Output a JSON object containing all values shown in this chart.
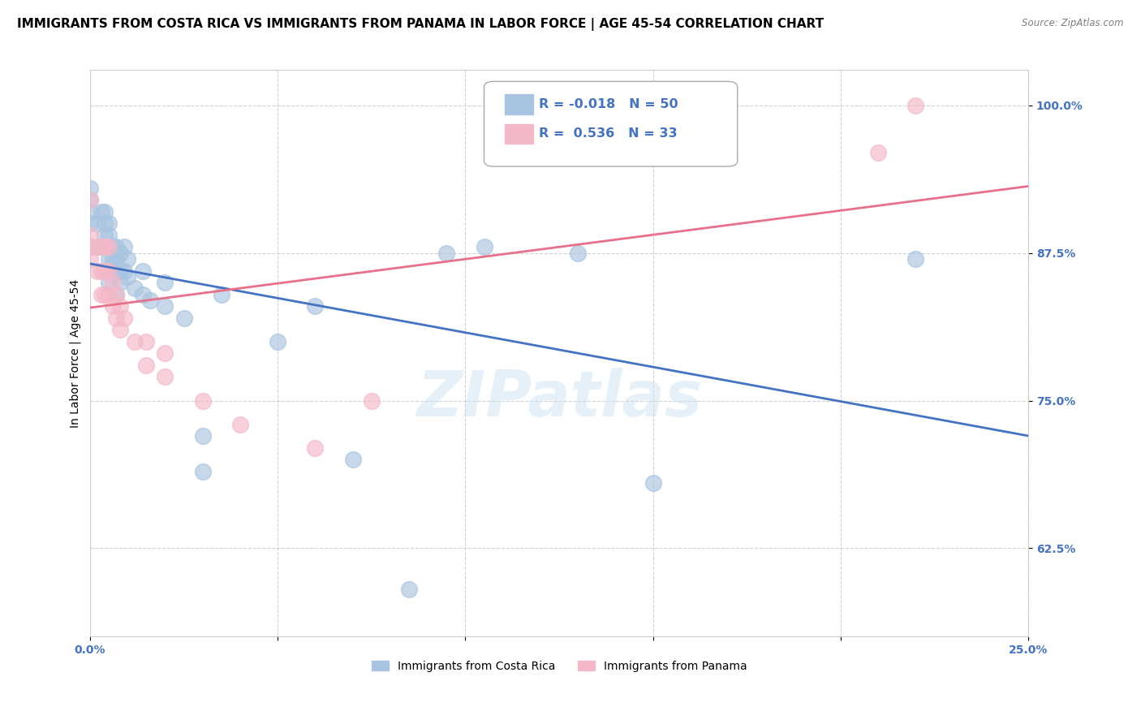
{
  "title": "IMMIGRANTS FROM COSTA RICA VS IMMIGRANTS FROM PANAMA IN LABOR FORCE | AGE 45-54 CORRELATION CHART",
  "source": "Source: ZipAtlas.com",
  "ylabel": "In Labor Force | Age 45-54",
  "watermark": "ZIPatlas",
  "xlim": [
    0.0,
    0.25
  ],
  "ylim": [
    0.55,
    1.03
  ],
  "x_ticks": [
    0.0,
    0.05,
    0.1,
    0.15,
    0.2,
    0.25
  ],
  "x_tick_labels": [
    "0.0%",
    "",
    "",
    "",
    "",
    "25.0%"
  ],
  "y_ticks": [
    0.625,
    0.75,
    0.875,
    1.0
  ],
  "y_tick_labels": [
    "62.5%",
    "75.0%",
    "87.5%",
    "100.0%"
  ],
  "costa_rica_R": -0.018,
  "costa_rica_N": 50,
  "panama_R": 0.536,
  "panama_N": 33,
  "costa_rica_color": "#a8c4e0",
  "panama_color": "#f4b8c8",
  "costa_rica_line_color": "#4472c4",
  "panama_line_color": "#e8708a",
  "legend_box_color_cr": "#a8c4e0",
  "legend_box_color_pa": "#f4b8c8",
  "costa_rica_x": [
    0.0,
    0.0,
    0.0,
    0.0,
    0.0,
    0.002,
    0.002,
    0.003,
    0.004,
    0.004,
    0.004,
    0.004,
    0.004,
    0.005,
    0.005,
    0.005,
    0.005,
    0.006,
    0.006,
    0.006,
    0.007,
    0.007,
    0.007,
    0.007,
    0.008,
    0.008,
    0.008,
    0.009,
    0.009,
    0.01,
    0.01,
    0.012,
    0.014,
    0.014,
    0.016,
    0.02,
    0.02,
    0.025,
    0.03,
    0.03,
    0.035,
    0.05,
    0.06,
    0.07,
    0.085,
    0.095,
    0.105,
    0.13,
    0.15,
    0.22
  ],
  "costa_rica_y": [
    0.88,
    0.9,
    0.91,
    0.92,
    0.93,
    0.88,
    0.9,
    0.91,
    0.86,
    0.88,
    0.89,
    0.9,
    0.91,
    0.85,
    0.87,
    0.89,
    0.9,
    0.86,
    0.87,
    0.88,
    0.84,
    0.86,
    0.87,
    0.88,
    0.85,
    0.86,
    0.875,
    0.86,
    0.88,
    0.855,
    0.87,
    0.845,
    0.84,
    0.86,
    0.835,
    0.83,
    0.85,
    0.82,
    0.69,
    0.72,
    0.84,
    0.8,
    0.83,
    0.7,
    0.59,
    0.875,
    0.88,
    0.875,
    0.68,
    0.87
  ],
  "panama_x": [
    0.0,
    0.0,
    0.0,
    0.0,
    0.002,
    0.002,
    0.003,
    0.003,
    0.003,
    0.004,
    0.004,
    0.004,
    0.005,
    0.005,
    0.005,
    0.006,
    0.006,
    0.007,
    0.007,
    0.008,
    0.008,
    0.009,
    0.012,
    0.015,
    0.015,
    0.02,
    0.02,
    0.03,
    0.04,
    0.06,
    0.075,
    0.21,
    0.22
  ],
  "panama_y": [
    0.87,
    0.88,
    0.89,
    0.92,
    0.86,
    0.88,
    0.84,
    0.86,
    0.88,
    0.84,
    0.86,
    0.88,
    0.84,
    0.86,
    0.88,
    0.83,
    0.85,
    0.82,
    0.84,
    0.81,
    0.83,
    0.82,
    0.8,
    0.78,
    0.8,
    0.77,
    0.79,
    0.75,
    0.73,
    0.71,
    0.75,
    0.96,
    1.0
  ],
  "background_color": "#ffffff",
  "grid_color": "#cccccc",
  "title_fontsize": 11,
  "label_fontsize": 10,
  "tick_fontsize": 10
}
